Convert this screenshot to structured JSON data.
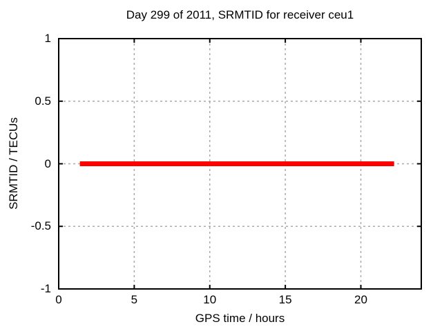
{
  "chart_data": {
    "type": "line",
    "title": "Day 299 of 2011, SRMTID for receiver ceu1",
    "xlabel": "GPS time / hours",
    "ylabel": "SRMTID / TECUs",
    "xlim": [
      0,
      24
    ],
    "ylim": [
      -1,
      1
    ],
    "xticks": {
      "values": [
        0,
        5,
        10,
        15,
        20
      ],
      "labels": [
        "0",
        "5",
        "10",
        "15",
        "20"
      ]
    },
    "yticks": {
      "values": [
        -1,
        -0.5,
        0,
        0.5,
        1
      ],
      "labels": [
        "-1",
        "-0.5",
        "0",
        "0.5",
        "1"
      ]
    },
    "grid": {
      "show": true,
      "style": "dashed",
      "color": "#a9a9a9"
    },
    "legend": "none",
    "background": "#ffffff",
    "axis_color": "#000000",
    "series": [
      {
        "name": "SRMTID",
        "color": "#ff0000",
        "line_width": 7,
        "x": [
          1.4,
          22.2
        ],
        "y": [
          0,
          0
        ]
      }
    ]
  }
}
